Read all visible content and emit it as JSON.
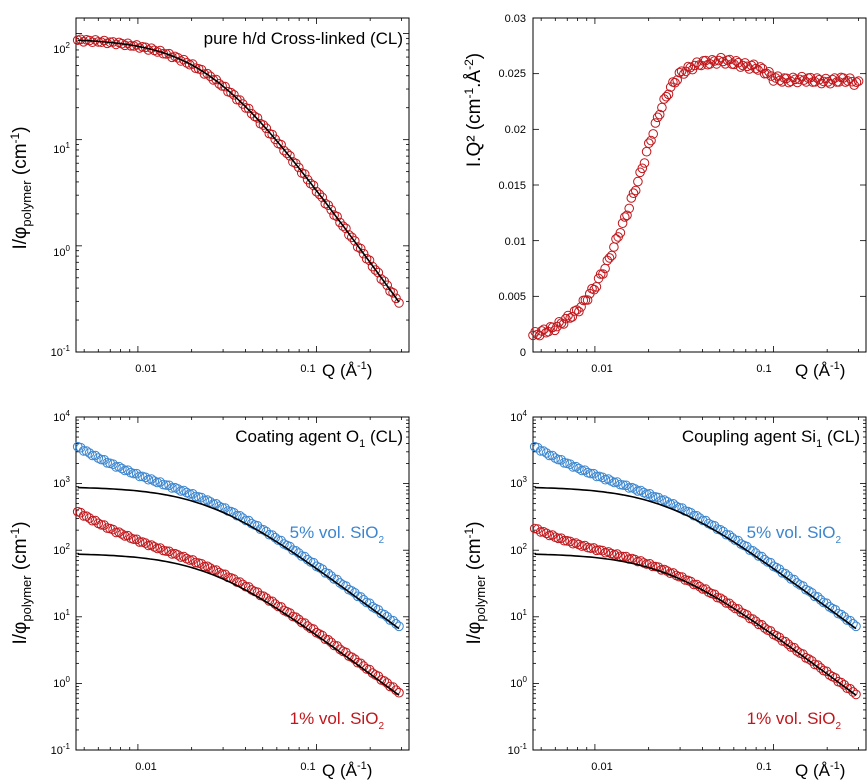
{
  "colors": {
    "red": "#c0171c",
    "blue": "#3b86cf",
    "fit": "#000000",
    "frame": "#000000"
  },
  "chart_data": [
    {
      "id": "a",
      "type": "scatter",
      "xscale": "log",
      "yscale": "log",
      "xlim": [
        0.0045,
        0.33
      ],
      "ylim": [
        0.1,
        140
      ],
      "xticks": [
        "0.01",
        "0.1"
      ],
      "xtick_values": [
        0.01,
        0.1
      ],
      "yticks": [
        {
          "base": "10",
          "exp": "2",
          "value": 100
        },
        {
          "base": "10",
          "exp": "1",
          "value": 10
        },
        {
          "base": "10",
          "exp": "0",
          "value": 1
        },
        {
          "base": "10",
          "exp": "-1",
          "value": 0.1
        }
      ],
      "ylabel": {
        "pre": "I/φ",
        "sub": "polymer",
        "mid": " (cm",
        "sup": "-1",
        "post": ")"
      },
      "xlabel": {
        "pre": "Q (Å",
        "sup": "-1",
        "post": ")"
      },
      "title": "pure h/d Cross-linked (CL)",
      "series": [
        {
          "label": "",
          "color": "red",
          "model": {
            "I0": 90,
            "xi": 40,
            "m": 2.33,
            "Qs": 0.007,
            "up": 0
          }
        }
      ]
    },
    {
      "id": "b",
      "type": "scatter",
      "xscale": "log",
      "yscale": "linear",
      "xlim": [
        0.0045,
        0.33
      ],
      "ylim": [
        0,
        0.03
      ],
      "xticks": [
        "0.01",
        "0.1"
      ],
      "xtick_values": [
        0.01,
        0.1
      ],
      "yticks": [
        {
          "label": "0.03",
          "value": 0.03
        },
        {
          "label": "0.025",
          "value": 0.025
        },
        {
          "label": "0.02",
          "value": 0.02
        },
        {
          "label": "0.015",
          "value": 0.015
        },
        {
          "label": "0.01",
          "value": 0.01
        },
        {
          "label": "0.005",
          "value": 0.005
        },
        {
          "label": "0",
          "value": 0
        }
      ],
      "ylabel": {
        "pre": "I.Q² (cm",
        "sup1": "-1",
        "mid": ".Å",
        "sup2": "-2",
        "post": ")"
      },
      "xlabel": {
        "pre": "Q (Å",
        "sup": "-1",
        "post": ")"
      },
      "series": [
        {
          "label": "",
          "color": "red",
          "x": [
            0.0045,
            0.006,
            0.008,
            0.01,
            0.012,
            0.015,
            0.018,
            0.02,
            0.023,
            0.026,
            0.03,
            0.035,
            0.04,
            0.045,
            0.05,
            0.06,
            0.07,
            0.08,
            0.09,
            0.1,
            0.12,
            0.15,
            0.2,
            0.25,
            0.3
          ],
          "y": [
            0.0015,
            0.0022,
            0.0037,
            0.0058,
            0.0083,
            0.0123,
            0.016,
            0.0185,
            0.0215,
            0.0235,
            0.025,
            0.0256,
            0.026,
            0.026,
            0.0262,
            0.026,
            0.0257,
            0.0256,
            0.0252,
            0.0246,
            0.0244,
            0.0245,
            0.0243,
            0.0245,
            0.0241
          ]
        }
      ]
    },
    {
      "id": "c",
      "type": "scatter",
      "xscale": "log",
      "yscale": "log",
      "xlim": [
        0.0045,
        0.33
      ],
      "ylim": [
        0.1,
        10000
      ],
      "xticks": [
        "0.01",
        "0.1"
      ],
      "xtick_values": [
        0.01,
        0.1
      ],
      "yticks": [
        {
          "base": "10",
          "exp": "4",
          "value": 10000
        },
        {
          "base": "10",
          "exp": "3",
          "value": 1000
        },
        {
          "base": "10",
          "exp": "2",
          "value": 100
        },
        {
          "base": "10",
          "exp": "1",
          "value": 10
        },
        {
          "base": "10",
          "exp": "0",
          "value": 1
        },
        {
          "base": "10",
          "exp": "-1",
          "value": 0.1
        }
      ],
      "ylabel": {
        "pre": "I/φ",
        "sub": "polymer",
        "mid": " (cm",
        "sup": "-1",
        "post": ")"
      },
      "xlabel": {
        "pre": "Q (Å",
        "sup": "-1",
        "post": ")"
      },
      "title": {
        "pre": "Coating agent O",
        "sub": "1",
        "post": " (CL)"
      },
      "series": [
        {
          "label": {
            "pre": "5% vol. SiO",
            "sub": "2"
          },
          "color": "blue",
          "model": {
            "I0": 900,
            "xi": 40,
            "m": 2.0,
            "Qs": 0.007,
            "up": 1.3
          }
        },
        {
          "label": {
            "pre": "1% vol. SiO",
            "sub": "2"
          },
          "color": "red",
          "model": {
            "I0": 90,
            "xi": 40,
            "m": 2.0,
            "Qs": 0.007,
            "up": 1.4
          }
        }
      ]
    },
    {
      "id": "d",
      "type": "scatter",
      "xscale": "log",
      "yscale": "log",
      "xlim": [
        0.0045,
        0.33
      ],
      "ylim": [
        0.1,
        10000
      ],
      "xticks": [
        "0.01",
        "0.1"
      ],
      "xtick_values": [
        0.01,
        0.1
      ],
      "yticks": [
        {
          "base": "10",
          "exp": "4",
          "value": 10000
        },
        {
          "base": "10",
          "exp": "3",
          "value": 1000
        },
        {
          "base": "10",
          "exp": "2",
          "value": 100
        },
        {
          "base": "10",
          "exp": "1",
          "value": 10
        },
        {
          "base": "10",
          "exp": "0",
          "value": 1
        },
        {
          "base": "10",
          "exp": "-1",
          "value": 0.1
        }
      ],
      "ylabel": {
        "pre": "I/φ",
        "sub": "polymer",
        "mid": " (cm",
        "sup": "-1",
        "post": ")"
      },
      "xlabel": {
        "pre": "Q (Å",
        "sup": "-1",
        "post": ")"
      },
      "title": {
        "pre": "Coupling agent Si",
        "sub": "1",
        "post": " (CL)"
      },
      "series": [
        {
          "label": {
            "pre": "5% vol. SiO",
            "sub": "2"
          },
          "color": "blue",
          "model": {
            "I0": 900,
            "xi": 40,
            "m": 2.0,
            "Qs": 0.007,
            "up": 1.3
          }
        },
        {
          "label": {
            "pre": "1% vol. SiO",
            "sub": "2"
          },
          "color": "red",
          "model": {
            "I0": 90,
            "xi": 40,
            "m": 2.0,
            "Qs": 0.007,
            "up": 0.6
          }
        }
      ]
    }
  ]
}
